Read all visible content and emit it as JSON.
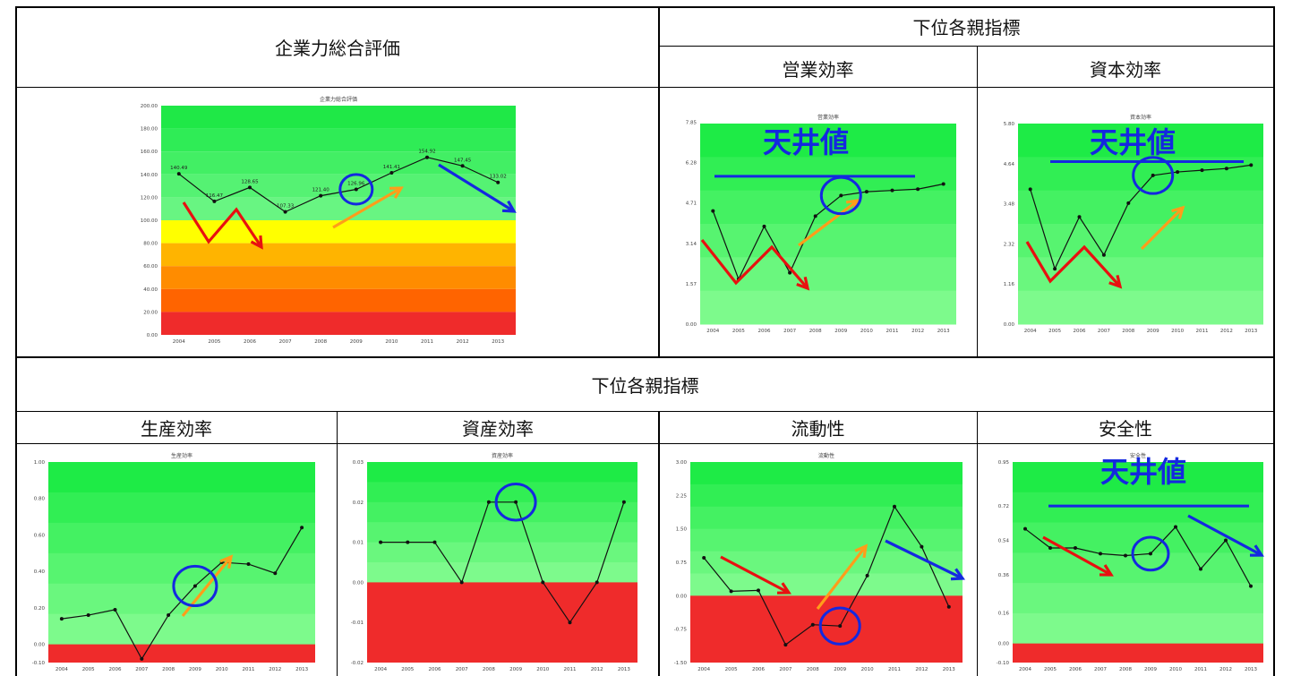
{
  "table": {
    "overall_header": "企業力総合評価",
    "sub_header_top": "下位各親指標",
    "sub_header_bottom": "下位各親指標",
    "col_eigyo": "営業効率",
    "col_shihon": "資本効率",
    "col_seisan": "生産効率",
    "col_shisan": "資産効率",
    "col_ryudo": "流動性",
    "col_anzen": "安全性"
  },
  "annotations": {
    "ceiling": "天井値"
  },
  "colors": {
    "green_top": "#1eeb46",
    "green_bottom": "#7dfa8c",
    "red": "#ef2b2b",
    "yellow": "#ffff00",
    "orange1": "#ffd200",
    "orange2": "#ffb400",
    "orange3": "#ff8c00",
    "orange4": "#ff6400",
    "arrow_red": "#e81010",
    "arrow_orange": "#ff9d1a",
    "arrow_blue": "#1428e0",
    "circle_blue": "#1428e0",
    "ceiling_text": "#1428e0"
  },
  "chart_data": [
    {
      "id": "overall",
      "type": "line",
      "title": "企業力総合評価",
      "x": [
        "2004",
        "2005",
        "2006",
        "2007",
        "2008",
        "2009",
        "2010",
        "2011",
        "2012",
        "2013"
      ],
      "values": [
        140.49,
        116.47,
        128.65,
        107.33,
        121.4,
        126.96,
        141.41,
        154.92,
        147.45,
        133.02
      ],
      "data_labels": [
        "140.49",
        "116.47",
        "128.65",
        "107.33",
        "121.40",
        "126.96",
        "141.41",
        "154.92",
        "147.45",
        "133.02"
      ],
      "ylim": [
        0,
        200
      ],
      "yticks": [
        "0.00",
        "20.00",
        "40.00",
        "60.00",
        "80.00",
        "100.00",
        "120.00",
        "140.00",
        "160.00",
        "180.00",
        "200.00"
      ],
      "zones": "overall",
      "circle_index": 5
    },
    {
      "id": "eigyo",
      "type": "line",
      "title": "営業効率",
      "x": [
        "2004",
        "2005",
        "2006",
        "2007",
        "2008",
        "2009",
        "2010",
        "2011",
        "2012",
        "2013"
      ],
      "values": [
        4.4,
        1.75,
        3.8,
        2.0,
        4.2,
        5.0,
        5.15,
        5.2,
        5.25,
        5.45
      ],
      "ylim": [
        0,
        7.8
      ],
      "yticks": [
        "0.00",
        "1.57",
        "3.14",
        "4.71",
        "6.28",
        "7.85"
      ],
      "zones": "simple",
      "zero": 0,
      "ceiling_value": 5.75,
      "circle_index": 5
    },
    {
      "id": "shihon",
      "type": "line",
      "title": "資本効率",
      "x": [
        "2004",
        "2005",
        "2006",
        "2007",
        "2008",
        "2009",
        "2010",
        "2011",
        "2012",
        "2013"
      ],
      "values": [
        3.9,
        1.6,
        3.1,
        2.0,
        3.5,
        4.3,
        4.4,
        4.45,
        4.5,
        4.6
      ],
      "ylim": [
        0,
        5.8
      ],
      "yticks": [
        "0.00",
        "1.16",
        "2.32",
        "3.48",
        "4.64",
        "5.80"
      ],
      "zones": "simple",
      "zero": 0,
      "ceiling_value": 4.7,
      "circle_index": 5
    },
    {
      "id": "seisan",
      "type": "line",
      "title": "生産効率",
      "x": [
        "2004",
        "2005",
        "2006",
        "2007",
        "2008",
        "2009",
        "2010",
        "2011",
        "2012",
        "2013"
      ],
      "values": [
        0.14,
        0.16,
        0.19,
        -0.08,
        0.16,
        0.32,
        0.45,
        0.44,
        0.39,
        0.64
      ],
      "ylim": [
        -0.1,
        1.0
      ],
      "yticks": [
        "-0.10",
        "0.00",
        "0.20",
        "0.40",
        "0.60",
        "0.80",
        "1.00"
      ],
      "zones": "simple",
      "zero": 0,
      "circle_index": 5
    },
    {
      "id": "shisan",
      "type": "line",
      "title": "資産効率",
      "x": [
        "2004",
        "2005",
        "2006",
        "2007",
        "2008",
        "2009",
        "2010",
        "2011",
        "2012",
        "2013"
      ],
      "values": [
        0.01,
        0.01,
        0.01,
        0.0,
        0.02,
        0.02,
        0.0,
        -0.01,
        0.0,
        0.02
      ],
      "ylim": [
        -0.02,
        0.03
      ],
      "yticks": [
        "-0.02",
        "-0.01",
        "0.00",
        "0.01",
        "0.02",
        "0.03"
      ],
      "zones": "simple",
      "zero": 0,
      "circle_index": 5
    },
    {
      "id": "ryudo",
      "type": "line",
      "title": "流動性",
      "x": [
        "2004",
        "2005",
        "2006",
        "2007",
        "2008",
        "2009",
        "2010",
        "2011",
        "2012",
        "2013"
      ],
      "values": [
        0.85,
        0.1,
        0.12,
        -1.1,
        -0.65,
        -0.68,
        0.45,
        2.0,
        1.1,
        -0.25
      ],
      "ylim": [
        -1.5,
        3.0
      ],
      "yticks": [
        "-1.50",
        "-0.75",
        "0.00",
        "0.75",
        "1.50",
        "2.25",
        "3.00"
      ],
      "zones": "simple",
      "zero": 0,
      "circle_index": 5
    },
    {
      "id": "anzen",
      "type": "line",
      "title": "安全性",
      "x": [
        "2004",
        "2005",
        "2006",
        "2007",
        "2008",
        "2009",
        "2010",
        "2011",
        "2012",
        "2013"
      ],
      "values": [
        0.6,
        0.5,
        0.5,
        0.47,
        0.46,
        0.47,
        0.61,
        0.39,
        0.54,
        0.3
      ],
      "ylim": [
        -0.1,
        0.95
      ],
      "yticks": [
        "-0.10",
        "0.00",
        "0.16",
        "0.36",
        "0.54",
        "0.72",
        "0.95"
      ],
      "zones": "simple",
      "zero": 0,
      "ceiling_value": 0.72,
      "circle_index": 5
    }
  ]
}
